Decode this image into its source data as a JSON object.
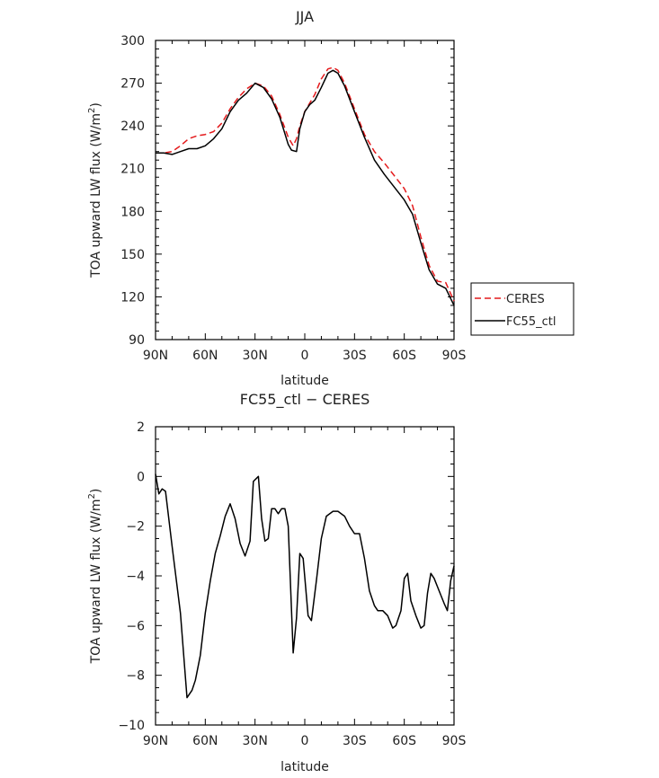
{
  "chart_data": [
    {
      "type": "line",
      "title": "JJA",
      "xlabel": "latitude",
      "ylabel_main": "TOA upward LW flux (W/m",
      "ylabel_sup": "2",
      "ylabel_close": ")",
      "xlim": [
        90,
        -90
      ],
      "ylim": [
        90,
        300
      ],
      "x_ticks": [
        90,
        60,
        30,
        0,
        -30,
        -60,
        -90
      ],
      "x_tick_labels": [
        "90N",
        "60N",
        "30N",
        "0",
        "30S",
        "60S",
        "90S"
      ],
      "y_ticks": [
        90,
        120,
        150,
        180,
        210,
        240,
        270,
        300
      ],
      "y_tick_labels": [
        "90",
        "120",
        "150",
        "180",
        "210",
        "240",
        "270",
        "300"
      ],
      "legend": {
        "position": "right",
        "entries": [
          "CERES",
          "FC55_ctl"
        ]
      },
      "series": [
        {
          "name": "CERES",
          "color": "#e41a1c",
          "dash": true,
          "points": [
            [
              90,
              221
            ],
            [
              85,
              221
            ],
            [
              80,
              222
            ],
            [
              75,
              226
            ],
            [
              70,
              231
            ],
            [
              65,
              233
            ],
            [
              60,
              234
            ],
            [
              55,
              236
            ],
            [
              50,
              242
            ],
            [
              45,
              252
            ],
            [
              40,
              260
            ],
            [
              35,
              266
            ],
            [
              30,
              270
            ],
            [
              25,
              268
            ],
            [
              20,
              261
            ],
            [
              15,
              248
            ],
            [
              10,
              232
            ],
            [
              7,
              226
            ],
            [
              5,
              231
            ],
            [
              3,
              240
            ],
            [
              0,
              250
            ],
            [
              -3,
              256
            ],
            [
              -6,
              262
            ],
            [
              -10,
              273
            ],
            [
              -14,
              280
            ],
            [
              -17,
              281
            ],
            [
              -20,
              279
            ],
            [
              -24,
              270
            ],
            [
              -30,
              252
            ],
            [
              -36,
              234
            ],
            [
              -42,
              222
            ],
            [
              -48,
              214
            ],
            [
              -54,
              205
            ],
            [
              -60,
              196
            ],
            [
              -65,
              184
            ],
            [
              -70,
              162
            ],
            [
              -75,
              142
            ],
            [
              -80,
              131
            ],
            [
              -85,
              130
            ],
            [
              -90,
              117
            ]
          ]
        },
        {
          "name": "FC55_ctl",
          "color": "#000000",
          "dash": false,
          "points": [
            [
              90,
              221
            ],
            [
              85,
              221
            ],
            [
              80,
              220
            ],
            [
              75,
              222
            ],
            [
              70,
              224
            ],
            [
              65,
              224
            ],
            [
              60,
              226
            ],
            [
              55,
              231
            ],
            [
              50,
              238
            ],
            [
              45,
              250
            ],
            [
              40,
              258
            ],
            [
              35,
              263
            ],
            [
              30,
              270
            ],
            [
              25,
              267
            ],
            [
              20,
              259
            ],
            [
              15,
              246
            ],
            [
              10,
              227
            ],
            [
              8,
              223
            ],
            [
              5,
              222
            ],
            [
              3,
              238
            ],
            [
              0,
              250
            ],
            [
              -3,
              255
            ],
            [
              -6,
              258
            ],
            [
              -10,
              267
            ],
            [
              -14,
              277
            ],
            [
              -17,
              279
            ],
            [
              -20,
              277
            ],
            [
              -24,
              268
            ],
            [
              -30,
              250
            ],
            [
              -36,
              232
            ],
            [
              -42,
              216
            ],
            [
              -48,
              206
            ],
            [
              -54,
              197
            ],
            [
              -60,
              188
            ],
            [
              -65,
              178
            ],
            [
              -70,
              158
            ],
            [
              -75,
              139
            ],
            [
              -80,
              129
            ],
            [
              -85,
              126
            ],
            [
              -90,
              114
            ]
          ]
        }
      ]
    },
    {
      "type": "line",
      "title": "FC55_ctl − CERES",
      "xlabel": "latitude",
      "ylabel_main": "TOA upward LW flux (W/m",
      "ylabel_sup": "2",
      "ylabel_close": ")",
      "xlim": [
        90,
        -90
      ],
      "ylim": [
        -10,
        2
      ],
      "x_ticks": [
        90,
        60,
        30,
        0,
        -30,
        -60,
        -90
      ],
      "x_tick_labels": [
        "90N",
        "60N",
        "30N",
        "0",
        "30S",
        "60S",
        "90S"
      ],
      "y_ticks": [
        -10,
        -8,
        -6,
        -4,
        -2,
        0,
        2
      ],
      "y_tick_labels": [
        "−10",
        "−8",
        "−6",
        "−4",
        "−2",
        "0",
        "2"
      ],
      "series": [
        {
          "name": "FC55_ctl − CERES",
          "color": "#000000",
          "dash": false,
          "points": [
            [
              90,
              0.1
            ],
            [
              88,
              -0.7
            ],
            [
              86,
              -0.5
            ],
            [
              84,
              -0.6
            ],
            [
              80,
              -2.8
            ],
            [
              75,
              -5.5
            ],
            [
              71,
              -8.9
            ],
            [
              68,
              -8.6
            ],
            [
              66,
              -8.2
            ],
            [
              63,
              -7.2
            ],
            [
              60,
              -5.5
            ],
            [
              57,
              -4.2
            ],
            [
              54,
              -3.1
            ],
            [
              51,
              -2.4
            ],
            [
              48,
              -1.6
            ],
            [
              45,
              -1.1
            ],
            [
              42,
              -1.7
            ],
            [
              39,
              -2.7
            ],
            [
              36,
              -3.2
            ],
            [
              33,
              -2.6
            ],
            [
              31,
              -0.2
            ],
            [
              28,
              0.0
            ],
            [
              26,
              -1.7
            ],
            [
              24,
              -2.6
            ],
            [
              22,
              -2.5
            ],
            [
              20,
              -1.3
            ],
            [
              18,
              -1.3
            ],
            [
              16,
              -1.5
            ],
            [
              14,
              -1.3
            ],
            [
              12,
              -1.3
            ],
            [
              10,
              -2.0
            ],
            [
              7,
              -7.1
            ],
            [
              5,
              -5.7
            ],
            [
              3,
              -3.1
            ],
            [
              1,
              -3.3
            ],
            [
              -2,
              -5.6
            ],
            [
              -4,
              -5.8
            ],
            [
              -7,
              -4.2
            ],
            [
              -10,
              -2.5
            ],
            [
              -13,
              -1.6
            ],
            [
              -17,
              -1.4
            ],
            [
              -20,
              -1.4
            ],
            [
              -24,
              -1.6
            ],
            [
              -27,
              -2.0
            ],
            [
              -30,
              -2.3
            ],
            [
              -33,
              -2.3
            ],
            [
              -36,
              -3.3
            ],
            [
              -39,
              -4.6
            ],
            [
              -42,
              -5.2
            ],
            [
              -44,
              -5.4
            ],
            [
              -47,
              -5.4
            ],
            [
              -50,
              -5.6
            ],
            [
              -53,
              -6.1
            ],
            [
              -55,
              -6.0
            ],
            [
              -58,
              -5.4
            ],
            [
              -60,
              -4.1
            ],
            [
              -62,
              -3.9
            ],
            [
              -64,
              -5.0
            ],
            [
              -67,
              -5.6
            ],
            [
              -70,
              -6.1
            ],
            [
              -72,
              -6.0
            ],
            [
              -74,
              -4.7
            ],
            [
              -76,
              -3.9
            ],
            [
              -78,
              -4.1
            ],
            [
              -81,
              -4.6
            ],
            [
              -84,
              -5.1
            ],
            [
              -86,
              -5.4
            ],
            [
              -88,
              -4.2
            ],
            [
              -90,
              -3.6
            ]
          ]
        }
      ]
    }
  ]
}
